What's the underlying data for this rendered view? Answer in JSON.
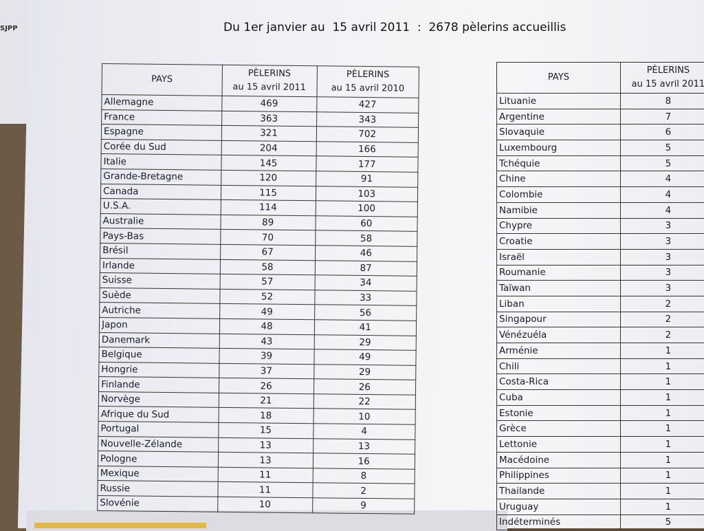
{
  "background_label": "SJPP",
  "title": "Du 1er janvier au  15 avril 2011  :  2678 pèlerins accueillis",
  "left_table": {
    "headers": [
      "PAYS",
      "PÈLERINS\nau 15 avril 2011",
      "PÈLERINS\nau 15 avril 2010"
    ],
    "header_lines": [
      [
        "PAYS"
      ],
      [
        "PÈLERINS",
        "au 15 avril 2011"
      ],
      [
        "PÈLERINS",
        "au 15 avril 2010"
      ]
    ],
    "rows": [
      [
        "Allemagne",
        "469",
        "427"
      ],
      [
        "France",
        "363",
        "343"
      ],
      [
        "Espagne",
        "321",
        "702"
      ],
      [
        "Corée du Sud",
        "204",
        "166"
      ],
      [
        "Italie",
        "145",
        "177"
      ],
      [
        "Grande-Bretagne",
        "120",
        "91"
      ],
      [
        "Canada",
        "115",
        "103"
      ],
      [
        "U.S.A.",
        "114",
        "100"
      ],
      [
        "Australie",
        "89",
        "60"
      ],
      [
        "Pays-Bas",
        "70",
        "58"
      ],
      [
        "Brésil",
        "67",
        "46"
      ],
      [
        "Irlande",
        "58",
        "87"
      ],
      [
        "Suisse",
        "57",
        "34"
      ],
      [
        "Suède",
        "52",
        "33"
      ],
      [
        "Autriche",
        "49",
        "56"
      ],
      [
        "Japon",
        "48",
        "41"
      ],
      [
        "Danemark",
        "43",
        "29"
      ],
      [
        "Belgique",
        "39",
        "49"
      ],
      [
        "Hongrie",
        "37",
        "29"
      ],
      [
        "Finlande",
        "26",
        "26"
      ],
      [
        "Norvège",
        "21",
        "22"
      ],
      [
        "Afrique du Sud",
        "18",
        "10"
      ],
      [
        "Portugal",
        "15",
        "4"
      ],
      [
        "Nouvelle-Zélande",
        "13",
        "13"
      ],
      [
        "Pologne",
        "13",
        "16"
      ],
      [
        "Mexique",
        "11",
        "8"
      ],
      [
        "Russie",
        "11",
        "2"
      ],
      [
        "Slovénie",
        "10",
        "9"
      ]
    ]
  },
  "right_table": {
    "header_lines": [
      [
        "PAYS"
      ],
      [
        "PÈLERINS",
        "au 15 avril 2011"
      ]
    ],
    "rows": [
      [
        "Lituanie",
        "8"
      ],
      [
        "Argentine",
        "7"
      ],
      [
        "Slovaquie",
        "6"
      ],
      [
        "Luxembourg",
        "5"
      ],
      [
        "Tchéquie",
        "5"
      ],
      [
        "Chine",
        "4"
      ],
      [
        "Colombie",
        "4"
      ],
      [
        "Namibie",
        "4"
      ],
      [
        "Chypre",
        "3"
      ],
      [
        "Croatie",
        "3"
      ],
      [
        "Israël",
        "3"
      ],
      [
        "Roumanie",
        "3"
      ],
      [
        "Taïwan",
        "3"
      ],
      [
        "Liban",
        "2"
      ],
      [
        "Singapour",
        "2"
      ],
      [
        "Vénézuéla",
        "2"
      ],
      [
        "Arménie",
        "1"
      ],
      [
        "Chili",
        "1"
      ],
      [
        "Costa-Rica",
        "1"
      ],
      [
        "Cuba",
        "1"
      ],
      [
        "Estonie",
        "1"
      ],
      [
        "Grèce",
        "1"
      ],
      [
        "Lettonie",
        "1"
      ],
      [
        "Macédoine",
        "1"
      ],
      [
        "Philippines",
        "1"
      ],
      [
        "Thailande",
        "1"
      ],
      [
        "Uruguay",
        "1"
      ],
      [
        "Indéterminés",
        "5"
      ]
    ]
  }
}
